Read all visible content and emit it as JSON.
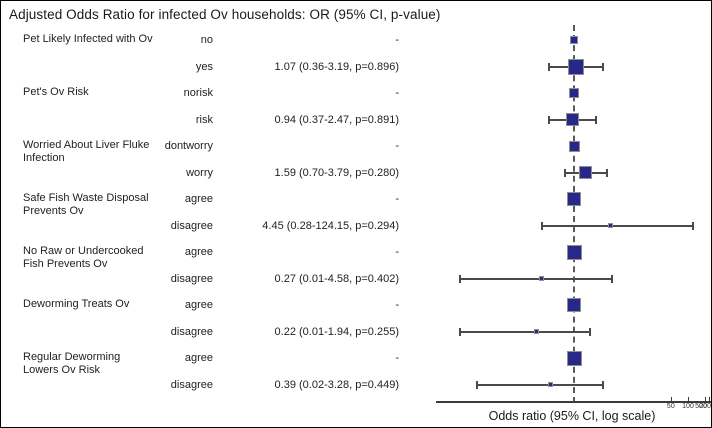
{
  "title": "Adjusted Odds Ratio for infected Ov households: OR (95% CI, p-value)",
  "colors": {
    "marker_fill": "#28288a",
    "marker_border": "#8f8f8f",
    "whisker": "#4a4a4a",
    "reference_line": "#5a5a5a",
    "axis": "#3a3a3a"
  },
  "chart_data": {
    "type": "forest",
    "x_scale": "log",
    "reference_value": 1.0,
    "xlabel": "Odds ratio (95% CI, log scale)",
    "x_ticks": [
      50,
      100,
      200,
      500
    ],
    "rows": [
      {
        "group": [
          "Pet Likely Infected with Ov"
        ],
        "level": "no",
        "or_text": "-",
        "reference": true,
        "weight": 8
      },
      {
        "group": [],
        "level": "yes",
        "or_text": "1.07 (0.36-3.19, p=0.896)",
        "reference": false,
        "or": 1.07,
        "ci_low": 0.36,
        "ci_high": 3.19,
        "p": 0.896,
        "weight": 16
      },
      {
        "group": [
          "Pet's Ov Risk"
        ],
        "level": "norisk",
        "or_text": "-",
        "reference": true,
        "weight": 10
      },
      {
        "group": [],
        "level": "risk",
        "or_text": "0.94 (0.37-2.47, p=0.891)",
        "reference": false,
        "or": 0.94,
        "ci_low": 0.37,
        "ci_high": 2.47,
        "p": 0.891,
        "weight": 13
      },
      {
        "group": [
          "Worried About Liver Fluke",
          "Infection"
        ],
        "level": "dontworry",
        "or_text": "-",
        "reference": true,
        "weight": 11
      },
      {
        "group": [],
        "level": "worry",
        "or_text": "1.59 (0.70-3.79, p=0.280)",
        "reference": false,
        "or": 1.59,
        "ci_low": 0.7,
        "ci_high": 3.79,
        "p": 0.28,
        "weight": 13
      },
      {
        "group": [
          "Safe Fish Waste Disposal",
          "Prevents Ov"
        ],
        "level": "agree",
        "or_text": "-",
        "reference": true,
        "weight": 14
      },
      {
        "group": [],
        "level": "disagree",
        "or_text": "4.45 (0.28-124.15, p=0.294)",
        "reference": false,
        "or": 4.45,
        "ci_low": 0.28,
        "ci_high": 124.15,
        "p": 0.294,
        "weight": 5
      },
      {
        "group": [
          "No Raw or Undercooked",
          "Fish Prevents Ov"
        ],
        "level": "agree",
        "or_text": "-",
        "reference": true,
        "weight": 15
      },
      {
        "group": [],
        "level": "disagree",
        "or_text": "0.27 (0.01-4.58, p=0.402)",
        "reference": false,
        "or": 0.27,
        "ci_low": 0.01,
        "ci_high": 4.58,
        "p": 0.402,
        "weight": 5
      },
      {
        "group": [
          "Deworming Treats Ov"
        ],
        "level": "agree",
        "or_text": "-",
        "reference": true,
        "weight": 14
      },
      {
        "group": [],
        "level": "disagree",
        "or_text": "0.22 (0.01-1.94, p=0.255)",
        "reference": false,
        "or": 0.22,
        "ci_low": 0.01,
        "ci_high": 1.94,
        "p": 0.255,
        "weight": 5
      },
      {
        "group": [
          "Regular Deworming",
          "Lowers Ov Risk"
        ],
        "level": "agree",
        "or_text": "-",
        "reference": true,
        "weight": 15
      },
      {
        "group": [],
        "level": "disagree",
        "or_text": "0.39 (0.02-3.28, p=0.449)",
        "reference": false,
        "or": 0.39,
        "ci_low": 0.02,
        "ci_high": 3.28,
        "p": 0.449,
        "weight": 5
      }
    ]
  }
}
